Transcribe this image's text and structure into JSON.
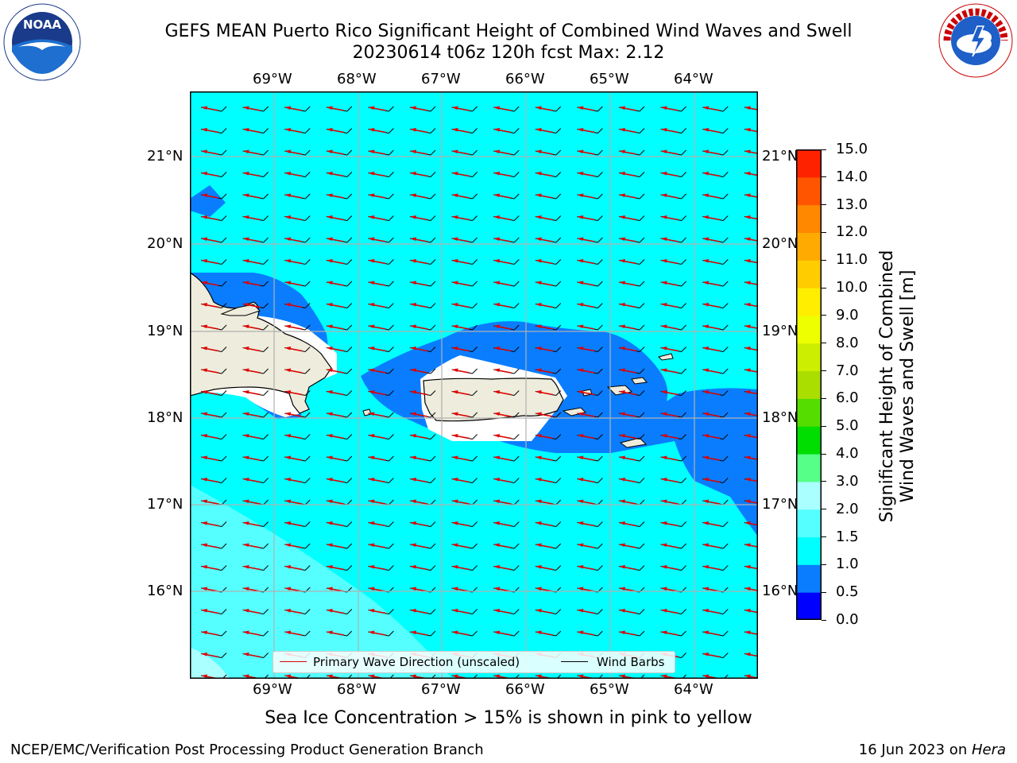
{
  "title": {
    "line1": "GEFS MEAN Puerto Rico Significant Height of Combined Wind Waves and Swell",
    "line2": "20230614 t06z 120h fcst   Max: 2.12"
  },
  "logos": {
    "left": "NOAA",
    "right": "NATIONAL WEATHER SERVICE"
  },
  "map": {
    "lon_labels": [
      "69°W",
      "68°W",
      "67°W",
      "66°W",
      "65°W",
      "64°W"
    ],
    "lat_labels": [
      "21°N",
      "20°N",
      "19°N",
      "18°N",
      "17°N",
      "16°N"
    ],
    "legend": {
      "wave_label": "Primary Wave Direction (unscaled)",
      "wind_label": "Wind Barbs"
    }
  },
  "colorbar": {
    "label_line1": "Significant Height of Combined",
    "label_line2": "Wind Waves and Swell [m]",
    "ticks": [
      "0.0",
      "0.5",
      "1.0",
      "1.5",
      "2.0",
      "3.0",
      "4.0",
      "5.0",
      "6.0",
      "7.0",
      "8.0",
      "9.0",
      "10.0",
      "11.0",
      "12.0",
      "13.0",
      "14.0",
      "15.0"
    ],
    "colors": [
      "#0000ff",
      "#0a7dff",
      "#00ffff",
      "#55ffff",
      "#aaffff",
      "#55ff88",
      "#00dd00",
      "#55dd00",
      "#aadd00",
      "#ccee00",
      "#eeff00",
      "#ffee00",
      "#ffcc00",
      "#ffaa00",
      "#ff8800",
      "#ff5500",
      "#ff2200"
    ]
  },
  "note": "Sea Ice Concentration > 15% is shown in pink to yellow",
  "footer": {
    "left": "NCEP/EMC/Verification Post Processing Product Generation Branch",
    "right_prefix": "16 Jun 2023 on ",
    "right_host": "Hera"
  }
}
